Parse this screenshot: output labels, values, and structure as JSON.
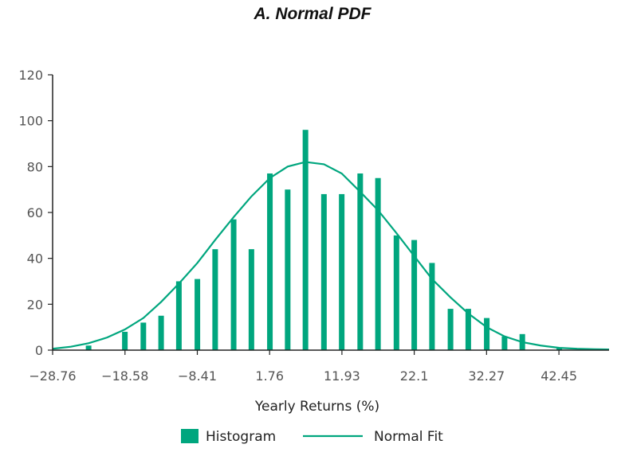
{
  "chart_data": {
    "type": "bar",
    "title": "A. Normal PDF",
    "xlabel": "Yearly Returns (%)",
    "ylabel": "",
    "ylim": [
      0,
      120
    ],
    "yticks": [
      0,
      20,
      40,
      60,
      80,
      100,
      120
    ],
    "xlim": [
      -28.76,
      49.5
    ],
    "xticks": [
      "−28.76",
      "−18.58",
      "−8.41",
      "1.76",
      "11.93",
      "22.1",
      "32.27",
      "42.45"
    ],
    "xtick_values": [
      -28.76,
      -18.58,
      -8.41,
      1.76,
      11.93,
      22.1,
      32.27,
      42.45
    ],
    "grid": false,
    "legend_position": "bottom-center",
    "colors": {
      "bar": "#00a67e",
      "line": "#00a67e",
      "axis": "#222222"
    },
    "series": [
      {
        "name": "Histogram",
        "kind": "bar",
        "x": [
          -26.2,
          -23.7,
          -21.1,
          -18.6,
          -16.0,
          -13.5,
          -11.0,
          -8.4,
          -5.9,
          -3.3,
          -0.8,
          1.8,
          4.3,
          6.8,
          9.4,
          11.9,
          14.5,
          17.0,
          19.6,
          22.1,
          24.6,
          27.2,
          29.7,
          32.3,
          34.8,
          37.3,
          39.9,
          42.5,
          45.0,
          47.5
        ],
        "values": [
          0,
          2,
          0,
          8,
          12,
          15,
          30,
          31,
          44,
          57,
          44,
          77,
          70,
          96,
          68,
          68,
          77,
          75,
          50,
          48,
          38,
          18,
          18,
          14,
          6,
          7,
          0,
          1,
          0,
          0
        ]
      },
      {
        "name": "Normal Fit",
        "kind": "line",
        "x": [
          -28.76,
          -26.2,
          -23.7,
          -21.1,
          -18.6,
          -16.0,
          -13.5,
          -11.0,
          -8.4,
          -5.9,
          -3.3,
          -0.8,
          1.8,
          4.3,
          6.8,
          9.4,
          11.9,
          14.5,
          17.0,
          19.6,
          22.1,
          24.6,
          27.2,
          29.7,
          32.3,
          34.8,
          37.3,
          39.9,
          42.5,
          45.0,
          47.5,
          49.5
        ],
        "values": [
          0.6,
          1.5,
          3.0,
          5.5,
          9.0,
          14.0,
          21.0,
          29.0,
          38.0,
          48.0,
          58.0,
          67.0,
          75.0,
          80.0,
          82.0,
          81.0,
          77.0,
          69.0,
          61.0,
          51.0,
          41.0,
          31.0,
          23.0,
          16.0,
          10.0,
          6.0,
          3.5,
          2.0,
          1.0,
          0.6,
          0.4,
          0.3
        ]
      }
    ]
  }
}
